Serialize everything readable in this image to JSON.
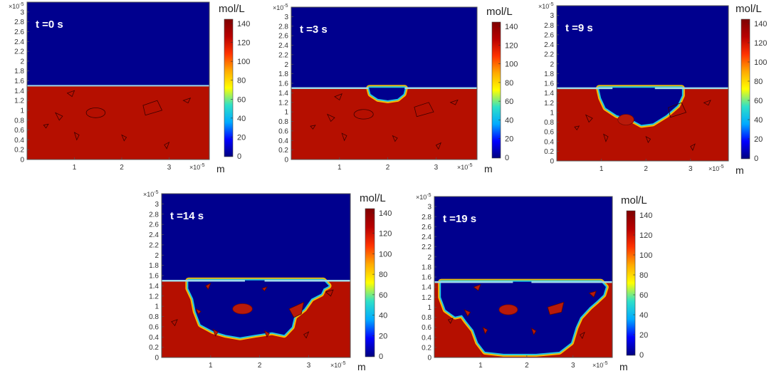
{
  "figure": {
    "colorbar_unit": "mol/L",
    "x_axis_unit": "m",
    "exponent_label": "×10",
    "exponent_power": "-5",
    "colormap": [
      "#00007f",
      "#0000ff",
      "#00aaff",
      "#2fe0c8",
      "#ffff00",
      "#ffaa00",
      "#ff3300",
      "#b80000",
      "#7f0000"
    ],
    "low_color": "#00008e",
    "high_color": "#b50f00",
    "interface_color": "#9fd8e8"
  },
  "chart_data": [
    {
      "type": "heatmap",
      "title": "t =0 s",
      "xlabel": "m",
      "ylabel": "",
      "x_ticks": [
        1,
        2,
        3
      ],
      "y_ticks": [
        0,
        0.2,
        0.4,
        0.6,
        0.8,
        1,
        1.2,
        1.4,
        1.6,
        1.8,
        2,
        2.2,
        2.4,
        2.6,
        2.8,
        3
      ],
      "xlim": [
        0,
        3.85
      ],
      "ylim": [
        0,
        3.2
      ],
      "scale": "×10^-5",
      "colorbar": {
        "label": "mol/L",
        "min": 0,
        "max": 140,
        "ticks": [
          0,
          20,
          40,
          60,
          80,
          100,
          120,
          140
        ]
      },
      "interface_y": 1.5,
      "high_region_value": 140,
      "low_region_value": 0
    },
    {
      "type": "heatmap",
      "title": "t =3 s",
      "xlabel": "m",
      "ylabel": "",
      "x_ticks": [
        1,
        2,
        3
      ],
      "y_ticks": [
        0,
        0.2,
        0.4,
        0.6,
        0.8,
        1,
        1.2,
        1.4,
        1.6,
        1.8,
        2,
        2.2,
        2.4,
        2.6,
        2.8,
        3
      ],
      "xlim": [
        0,
        3.85
      ],
      "ylim": [
        0,
        3.2
      ],
      "scale": "×10^-5",
      "colorbar": {
        "label": "mol/L",
        "min": 0,
        "max": 140,
        "ticks": [
          0,
          20,
          40,
          60,
          80,
          100,
          120,
          140
        ]
      },
      "interface_y": 1.5,
      "high_region_value": 140,
      "low_region_value": 0
    },
    {
      "type": "heatmap",
      "title": "t =9 s",
      "xlabel": "m",
      "ylabel": "",
      "x_ticks": [
        1,
        2,
        3
      ],
      "y_ticks": [
        0,
        0.2,
        0.4,
        0.6,
        0.8,
        1,
        1.2,
        1.4,
        1.6,
        1.8,
        2,
        2.2,
        2.4,
        2.6,
        2.8,
        3
      ],
      "xlim": [
        0,
        3.85
      ],
      "ylim": [
        0,
        3.2
      ],
      "scale": "×10^-5",
      "colorbar": {
        "label": "mol/L",
        "min": 0,
        "max": 140,
        "ticks": [
          0,
          20,
          40,
          60,
          80,
          100,
          120,
          140
        ]
      },
      "interface_y": 1.5,
      "high_region_value": 140,
      "low_region_value": 0
    },
    {
      "type": "heatmap",
      "title": "t =14 s",
      "xlabel": "m",
      "ylabel": "",
      "x_ticks": [
        1,
        2,
        3
      ],
      "y_ticks": [
        0,
        0.2,
        0.4,
        0.6,
        0.8,
        1,
        1.2,
        1.4,
        1.6,
        1.8,
        2,
        2.2,
        2.4,
        2.6,
        2.8,
        3
      ],
      "xlim": [
        0,
        3.85
      ],
      "ylim": [
        0,
        3.2
      ],
      "scale": "×10^-5",
      "colorbar": {
        "label": "mol/L",
        "min": 0,
        "max": 140,
        "ticks": [
          0,
          20,
          40,
          60,
          80,
          100,
          120,
          140
        ]
      },
      "interface_y": 1.5,
      "high_region_value": 140,
      "low_region_value": 0
    },
    {
      "type": "heatmap",
      "title": "t =19 s",
      "xlabel": "m",
      "ylabel": "",
      "x_ticks": [
        1,
        2,
        3
      ],
      "y_ticks": [
        0,
        0.2,
        0.4,
        0.6,
        0.8,
        1,
        1.2,
        1.4,
        1.6,
        1.8,
        2,
        2.2,
        2.4,
        2.6,
        2.8,
        3
      ],
      "xlim": [
        0,
        3.85
      ],
      "ylim": [
        0,
        3.2
      ],
      "scale": "×10^-5",
      "colorbar": {
        "label": "mol/L",
        "min": 0,
        "max": 140,
        "ticks": [
          0,
          20,
          40,
          60,
          80,
          100,
          120,
          140
        ]
      },
      "interface_y": 1.5,
      "high_region_value": 140,
      "low_region_value": 0
    }
  ]
}
